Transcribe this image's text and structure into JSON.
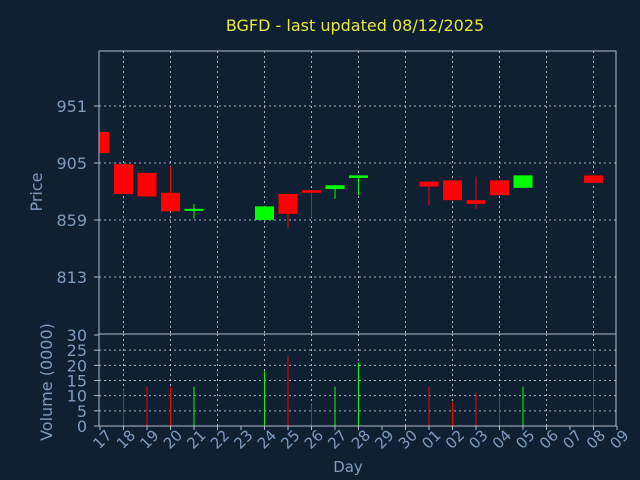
{
  "chart_data": {
    "type": "candlestick",
    "title": "BGFD - last updated 08/12/2025",
    "xlabel": "Day",
    "ylabel_price": "Price",
    "ylabel_volume": "Volume (0000)",
    "price_ticks": [
      813,
      859,
      905,
      951
    ],
    "volume_ticks": [
      0,
      5,
      10,
      15,
      20,
      25,
      30
    ],
    "day_labels": [
      "17",
      "18",
      "19",
      "20",
      "21",
      "22",
      "23",
      "24",
      "25",
      "26",
      "27",
      "28",
      "29",
      "30",
      "01",
      "02",
      "03",
      "04",
      "05",
      "06",
      "07",
      "08",
      "09"
    ],
    "grid": true,
    "colors": {
      "background": "#0f2033",
      "axis_text": "#7f9bbf",
      "title": "#e8e83a",
      "frame": "#b0bccc",
      "up": "#00ff00",
      "down": "#ff0000",
      "grid": "#cfd8e3"
    },
    "candles": [
      {
        "day": "17",
        "open": 930,
        "high": 930,
        "low": 913,
        "close": 913,
        "volume": 0
      },
      {
        "day": "18",
        "open": 904,
        "high": 904,
        "low": 880,
        "close": 880,
        "volume": 12
      },
      {
        "day": "19",
        "open": 897,
        "high": 897,
        "low": 878,
        "close": 878,
        "volume": 13
      },
      {
        "day": "20",
        "open": 881,
        "high": 902,
        "low": 866,
        "close": 866,
        "volume": 13
      },
      {
        "day": "21",
        "open": 867,
        "high": 872,
        "low": 860,
        "close": 868,
        "volume": 13
      },
      {
        "day": "24",
        "open": 859,
        "high": 870,
        "low": 859,
        "close": 870,
        "volume": 18
      },
      {
        "day": "25",
        "open": 880,
        "high": 880,
        "low": 853,
        "close": 864,
        "volume": 23
      },
      {
        "day": "26",
        "open": 883,
        "high": 883,
        "low": 861,
        "close": 881,
        "volume": 7
      },
      {
        "day": "27",
        "open": 884,
        "high": 887,
        "low": 876,
        "close": 887,
        "volume": 13
      },
      {
        "day": "28",
        "open": 893,
        "high": 895,
        "low": 879,
        "close": 895,
        "volume": 21
      },
      {
        "day": "01",
        "open": 890,
        "high": 890,
        "low": 871,
        "close": 886,
        "volume": 13
      },
      {
        "day": "02",
        "open": 891,
        "high": 891,
        "low": 875,
        "close": 875,
        "volume": 8
      },
      {
        "day": "03",
        "open": 875,
        "high": 894,
        "low": 868,
        "close": 872,
        "volume": 11
      },
      {
        "day": "04",
        "open": 891,
        "high": 891,
        "low": 879,
        "close": 879,
        "volume": 10
      },
      {
        "day": "05",
        "open": 885,
        "high": 895,
        "low": 885,
        "close": 895,
        "volume": 13
      },
      {
        "day": "08",
        "open": 895,
        "high": 895,
        "low": 889,
        "close": 889,
        "volume": 25
      }
    ]
  }
}
